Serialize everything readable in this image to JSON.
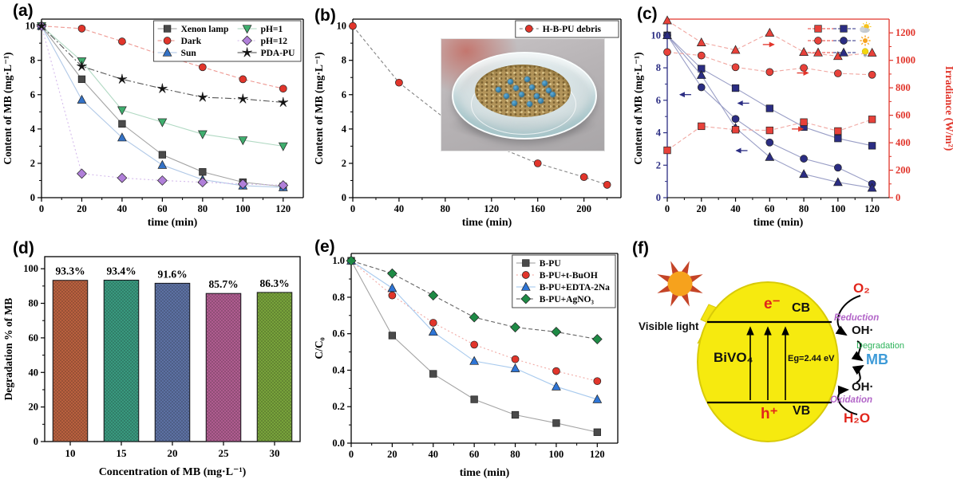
{
  "chart_data": [
    {
      "id": "panel-a",
      "panel_label": "(a)",
      "type": "line",
      "xlabel": "time (min)",
      "ylabel": "Content of MB (mg·L⁻¹)",
      "x": [
        0,
        20,
        40,
        60,
        80,
        100,
        120
      ],
      "xticks": [
        0,
        20,
        40,
        60,
        80,
        100,
        120
      ],
      "xlim": [
        0,
        130
      ],
      "ylim": [
        0,
        10.4
      ],
      "yticks": [
        0,
        2,
        4,
        6,
        8,
        10
      ],
      "legend_position": "top-right",
      "legend_columns": 2,
      "legend_box": true,
      "series": [
        {
          "name": "Xenon lamp",
          "marker": "square",
          "color": "#4a4a4a",
          "line": "#9a9a9a",
          "dash": "",
          "values": [
            10,
            6.9,
            4.3,
            2.5,
            1.5,
            0.9,
            0.65
          ]
        },
        {
          "name": "Dark",
          "marker": "circle",
          "color": "#e1352b",
          "line": "#ec8d86",
          "dash": "5 3",
          "values": [
            10,
            9.85,
            9.1,
            8.3,
            7.6,
            6.9,
            6.35
          ]
        },
        {
          "name": "Sun",
          "marker": "triangle",
          "color": "#3472c6",
          "line": "#a9c3e4",
          "dash": "",
          "values": [
            10,
            5.7,
            3.5,
            1.9,
            1.05,
            0.7,
            0.6
          ]
        },
        {
          "name": "pH=1",
          "marker": "triangle-down",
          "color": "#3fae6e",
          "line": "#a8d5bc",
          "dash": "",
          "values": [
            10,
            7.95,
            5.1,
            4.4,
            3.7,
            3.35,
            3.0
          ]
        },
        {
          "name": "pH=12",
          "marker": "diamond",
          "color": "#b07fd9",
          "line": "#d0b4ea",
          "dash": "2 3",
          "values": [
            10,
            1.4,
            1.15,
            1.0,
            0.9,
            0.8,
            0.72
          ]
        },
        {
          "name": "PDA-PU",
          "marker": "star",
          "color": "#111111",
          "line": "#444444",
          "dash": "8 3 2 3",
          "values": [
            10,
            7.65,
            6.9,
            6.35,
            5.85,
            5.75,
            5.55
          ]
        }
      ]
    },
    {
      "id": "panel-b",
      "panel_label": "(b)",
      "type": "line",
      "xlabel": "time (min)",
      "ylabel": "Content of MB (mg·L⁻¹)",
      "x": [
        0,
        40,
        80,
        120,
        160,
        200,
        220
      ],
      "xticks": [
        0,
        40,
        80,
        120,
        160,
        200
      ],
      "xlim": [
        0,
        232
      ],
      "ylim": [
        0,
        10.4
      ],
      "yticks": [
        0,
        2,
        4,
        6,
        8,
        10
      ],
      "legend_position": "top-right",
      "legend_box": true,
      "series": [
        {
          "name": "H-B-PU debris",
          "marker": "circle",
          "color": "#e1352b",
          "line": "#777777",
          "dash": "4 3",
          "values": [
            10,
            6.7,
            4.6,
            3.1,
            2.0,
            1.2,
            0.75
          ]
        }
      ]
    },
    {
      "id": "panel-c",
      "panel_label": "(c)",
      "type": "line",
      "xlabel": "time (min)",
      "ylabel": "Content of MB (mg·L⁻¹)",
      "y2label": "Irradiance (W/m²)",
      "x": [
        0,
        20,
        40,
        60,
        80,
        100,
        120
      ],
      "xticks": [
        0,
        20,
        40,
        60,
        80,
        100,
        120
      ],
      "xlim": [
        0,
        130
      ],
      "ylim": [
        0,
        11
      ],
      "yticks": [
        0,
        2,
        4,
        6,
        8,
        10
      ],
      "y2lim": [
        0,
        1300
      ],
      "y2ticks": [
        0,
        200,
        400,
        600,
        800,
        1000,
        1200
      ],
      "axis_colors": {
        "left": "#2b2d83",
        "right": "#e1352b"
      },
      "spine_colors": {
        "left": "#2b2d83",
        "right": "#e1352b",
        "top": "#e1352b",
        "bottom": "#1a1a1a"
      },
      "legend_custom": [
        {
          "marker": "square",
          "icon": "sun-behind-cloud-icon"
        },
        {
          "marker": "circle",
          "icon": "sun-icon"
        },
        {
          "marker": "triangle",
          "icon": "light-bulb-icon"
        }
      ],
      "series": [
        {
          "name": "cloudy - content of MB",
          "axis": "left",
          "marker": "square",
          "color": "#2b2d83",
          "line": "#8e93c0",
          "dash": "",
          "values": [
            10,
            7.95,
            6.75,
            5.5,
            4.35,
            3.65,
            3.2
          ]
        },
        {
          "name": "sunny - content of MB",
          "axis": "left",
          "marker": "circle",
          "color": "#2b2d83",
          "line": "#8e93c0",
          "dash": "",
          "values": [
            10,
            6.8,
            4.85,
            3.4,
            2.4,
            1.85,
            0.85
          ]
        },
        {
          "name": "bulb - content of MB",
          "axis": "left",
          "marker": "triangle",
          "color": "#2b2d83",
          "line": "#8e93c0",
          "dash": "",
          "values": [
            10,
            7.55,
            4.3,
            2.5,
            1.45,
            0.95,
            0.6
          ]
        },
        {
          "name": "cloudy - irradiance",
          "axis": "right",
          "marker": "square",
          "color": "#e8413a",
          "line": "#ef9d97",
          "dash": "5 3",
          "values": [
            345,
            520,
            495,
            490,
            550,
            485,
            570
          ]
        },
        {
          "name": "sunny - irradiance",
          "axis": "right",
          "marker": "circle",
          "color": "#e8413a",
          "line": "#ef9d97",
          "dash": "5 3",
          "values": [
            1060,
            1035,
            950,
            915,
            945,
            905,
            895
          ]
        },
        {
          "name": "bulb - irradiance",
          "axis": "right",
          "marker": "triangle",
          "color": "#e8413a",
          "line": "#ef9d97",
          "dash": "5 3",
          "values": [
            1290,
            1130,
            1075,
            1200,
            1060,
            1030,
            1055
          ]
        }
      ],
      "annotations": [
        {
          "axis": "left",
          "x": 14,
          "y": 6.35,
          "dir": "left"
        },
        {
          "axis": "left",
          "x": 48,
          "y": 5.82,
          "dir": "left"
        },
        {
          "axis": "left",
          "x": 47,
          "y": 2.9,
          "dir": "left"
        },
        {
          "axis": "right",
          "x": 56,
          "y": 1115,
          "dir": "right"
        },
        {
          "axis": "right",
          "x": 76,
          "y": 908,
          "dir": "right"
        },
        {
          "axis": "right",
          "x": 73,
          "y": 500,
          "dir": "right"
        }
      ]
    },
    {
      "id": "panel-d",
      "panel_label": "(d)",
      "type": "bar",
      "xlabel": "Concentration of MB (mg·L⁻¹)",
      "ylabel": "Degradation % of MB",
      "categories": [
        "10",
        "15",
        "20",
        "25",
        "30"
      ],
      "values": [
        93.3,
        93.4,
        91.6,
        85.7,
        86.3
      ],
      "bar_labels": [
        "93.3%",
        "93.4%",
        "91.6%",
        "85.7%",
        "86.3%"
      ],
      "bar_colors": [
        "#bf6340",
        "#3a9e82",
        "#5f74a8",
        "#b55f94",
        "#7ba83c"
      ],
      "ylim": [
        0,
        107
      ],
      "yticks": [
        0,
        20,
        40,
        60,
        80,
        100
      ]
    },
    {
      "id": "panel-e",
      "panel_label": "(e)",
      "type": "line",
      "xlabel": "time (min)",
      "ylabel": "C/C₀",
      "x": [
        0,
        20,
        40,
        60,
        80,
        100,
        120
      ],
      "xticks": [
        0,
        20,
        40,
        60,
        80,
        100,
        120
      ],
      "xlim": [
        0,
        130
      ],
      "ylim": [
        0,
        1.04
      ],
      "yticks": [
        0.0,
        0.2,
        0.4,
        0.6,
        0.8,
        1.0
      ],
      "ydec": 1,
      "legend_position": "top-right",
      "legend_box": true,
      "series": [
        {
          "name": "B-PU",
          "marker": "square",
          "color": "#4a4a4a",
          "line": "#9a9a9a",
          "dash": "",
          "values": [
            1.0,
            0.59,
            0.38,
            0.24,
            0.155,
            0.11,
            0.06
          ]
        },
        {
          "name": "B-PU+t-BuOH",
          "marker": "circle",
          "color": "#e1352b",
          "line": "#f0a09a",
          "dash": "2 3",
          "values": [
            1.0,
            0.81,
            0.66,
            0.54,
            0.46,
            0.395,
            0.34
          ]
        },
        {
          "name": "B-PU+EDTA-2Na",
          "marker": "triangle",
          "color": "#2e75d6",
          "line": "#9ec4ec",
          "dash": "",
          "values": [
            1.0,
            0.85,
            0.61,
            0.45,
            0.41,
            0.31,
            0.24
          ]
        },
        {
          "name": "B-PU+AgNO₃",
          "marker": "diamond",
          "color": "#1e8a45",
          "line": "#555555",
          "dash": "5 3",
          "values": [
            1.0,
            0.93,
            0.81,
            0.69,
            0.635,
            0.61,
            0.57
          ]
        }
      ]
    }
  ],
  "diagram": {
    "panel_label": "(f)",
    "visible_light": "Visible light",
    "material": "BiVO₄",
    "electron": "e⁻",
    "cb": "CB",
    "band_gap": "Eg=2.44 eV",
    "hole": "h⁺",
    "vb": "VB",
    "o2": "O₂",
    "reduction": "Reduction",
    "oh_top": "OH·",
    "degradation": "Degradation",
    "mb": "MB",
    "oh_bottom": "OH·",
    "oxidation": "Oxidation",
    "h2o": "H₂O",
    "colors": {
      "ellipse": "#f6ea0f",
      "sun_core": "#f6a21d",
      "sun_rays": "#c44427",
      "bolt": "#f4e512",
      "red": "#e1251b",
      "purple": "#b265c8",
      "green": "#2db35a",
      "mb_blue": "#3e9bd8"
    }
  }
}
